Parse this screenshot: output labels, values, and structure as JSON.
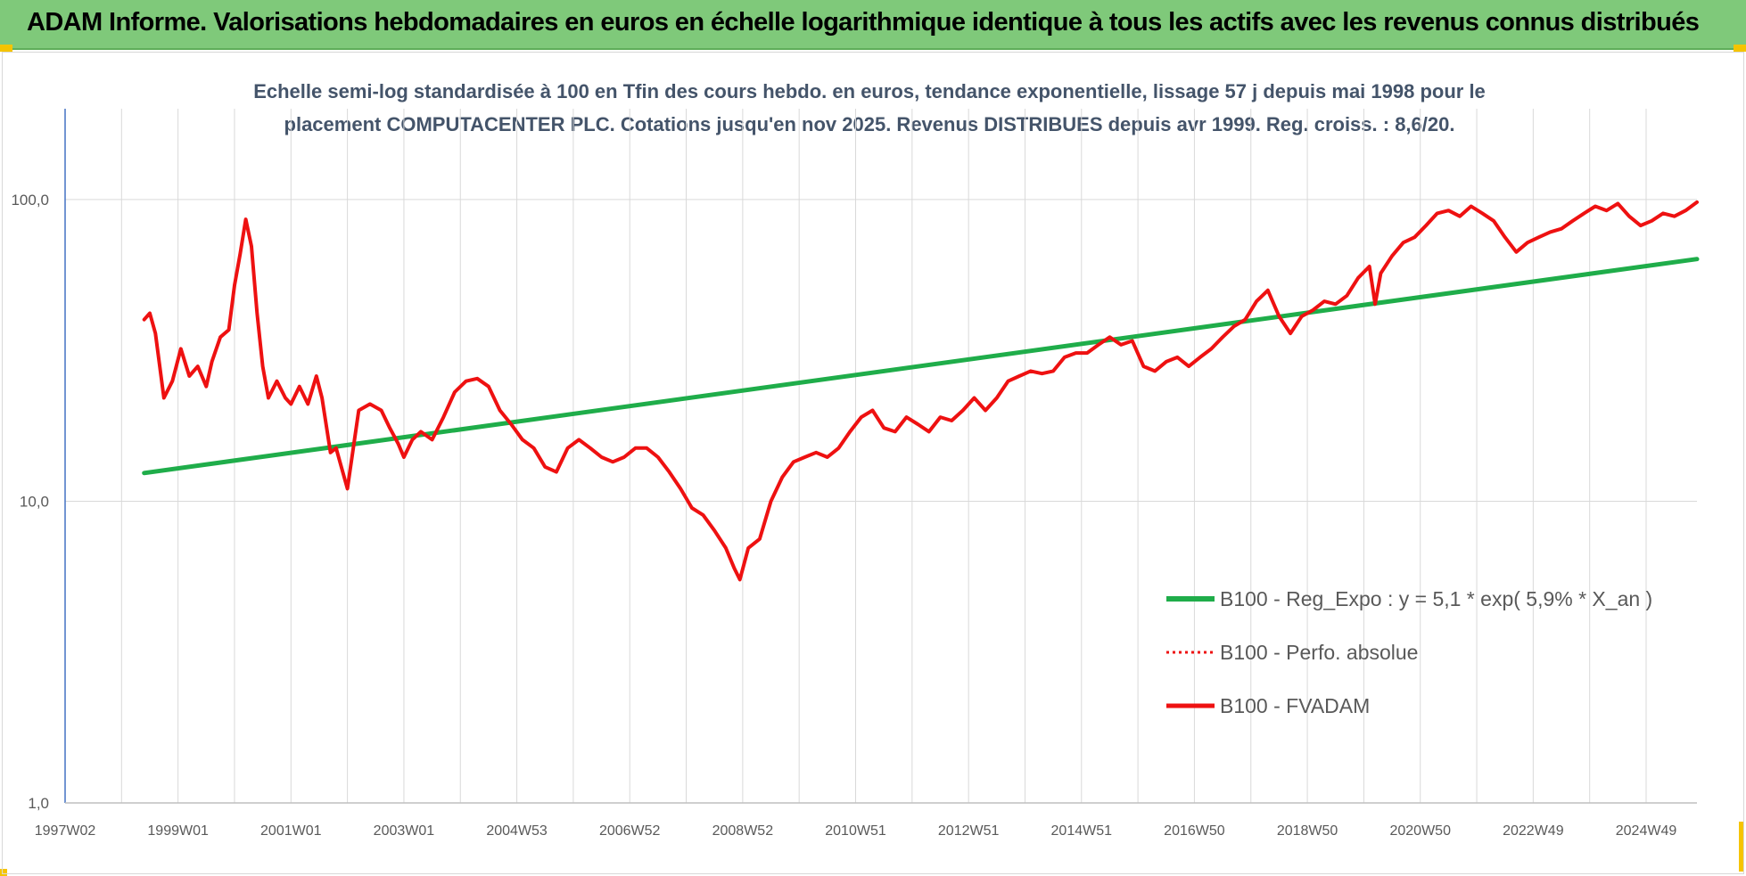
{
  "banner": {
    "title": "ADAM Informe. Valorisations hebdomadaires en euros en échelle logarithmique identique à tous les actifs avec les revenus connus distribués"
  },
  "colors": {
    "banner_bg": "#7fc97a",
    "regression": "#1fad4a",
    "fvadam": "#ee1111",
    "perf": "#ee1111",
    "corner_accent": "#f5c400"
  },
  "chart_data": {
    "type": "line",
    "subtitle_line1": "Echelle semi-log standardisée à 100 en Tfin des cours hebdo. en euros, tendance exponentielle, lissage 57 j depuis mai 1998 pour le",
    "subtitle_line2": "placement COMPUTACENTER PLC. Cotations jusqu'en nov 2025.  Revenus DISTRIBUES depuis avr 1999. Reg. croiss. : 8,6/20.",
    "y_scale": "log",
    "ylim": [
      1,
      200
    ],
    "y_ticks": [
      {
        "value": 1,
        "label": "1,0"
      },
      {
        "value": 10,
        "label": "10,0"
      },
      {
        "value": 100,
        "label": "100,0"
      }
    ],
    "xlim": [
      1997.0,
      2025.9
    ],
    "x_ticks": [
      {
        "value": 1997.0,
        "label": "1997W02"
      },
      {
        "value": 1999.0,
        "label": "1999W01"
      },
      {
        "value": 2001.0,
        "label": "2001W01"
      },
      {
        "value": 2003.0,
        "label": "2003W01"
      },
      {
        "value": 2005.0,
        "label": "2004W53"
      },
      {
        "value": 2007.0,
        "label": "2006W52"
      },
      {
        "value": 2009.0,
        "label": "2008W52"
      },
      {
        "value": 2011.0,
        "label": "2010W51"
      },
      {
        "value": 2013.0,
        "label": "2012W51"
      },
      {
        "value": 2015.0,
        "label": "2014W51"
      },
      {
        "value": 2017.0,
        "label": "2016W50"
      },
      {
        "value": 2019.0,
        "label": "2018W50"
      },
      {
        "value": 2021.0,
        "label": "2020W50"
      },
      {
        "value": 2023.0,
        "label": "2022W49"
      },
      {
        "value": 2025.0,
        "label": "2024W49"
      }
    ],
    "grid": "vertical",
    "legend_position": "bottom-right",
    "series": [
      {
        "name": "B100 - Reg_Expo : y = 5,1 * exp( 5,9% *  X_an )",
        "style": "solid-green",
        "x": [
          1998.4,
          2025.9
        ],
        "y": [
          12.4,
          63.5
        ]
      },
      {
        "name": "B100 - Perfo. absolue",
        "style": "dotted-red",
        "x": [],
        "y": []
      },
      {
        "name": "B100 - FVADAM",
        "style": "solid-red",
        "x": [
          1998.4,
          1998.5,
          1998.6,
          1998.75,
          1998.9,
          1999.05,
          1999.2,
          1999.35,
          1999.5,
          1999.6,
          1999.75,
          1999.9,
          2000.0,
          2000.1,
          2000.2,
          2000.3,
          2000.4,
          2000.5,
          2000.6,
          2000.75,
          2000.9,
          2001.0,
          2001.15,
          2001.3,
          2001.45,
          2001.55,
          2001.7,
          2001.8,
          2002.0,
          2002.2,
          2002.4,
          2002.6,
          2002.75,
          2002.9,
          2003.0,
          2003.15,
          2003.3,
          2003.5,
          2003.7,
          2003.9,
          2004.1,
          2004.3,
          2004.5,
          2004.7,
          2004.9,
          2005.1,
          2005.3,
          2005.5,
          2005.7,
          2005.9,
          2006.1,
          2006.3,
          2006.5,
          2006.7,
          2006.9,
          2007.1,
          2007.3,
          2007.5,
          2007.7,
          2007.9,
          2008.1,
          2008.3,
          2008.5,
          2008.7,
          2008.85,
          2008.95,
          2009.1,
          2009.3,
          2009.5,
          2009.7,
          2009.9,
          2010.1,
          2010.3,
          2010.5,
          2010.7,
          2010.9,
          2011.1,
          2011.3,
          2011.5,
          2011.7,
          2011.9,
          2012.1,
          2012.3,
          2012.5,
          2012.7,
          2012.9,
          2013.1,
          2013.3,
          2013.5,
          2013.7,
          2013.9,
          2014.1,
          2014.3,
          2014.5,
          2014.7,
          2014.9,
          2015.1,
          2015.3,
          2015.5,
          2015.7,
          2015.9,
          2016.1,
          2016.3,
          2016.5,
          2016.7,
          2016.9,
          2017.1,
          2017.3,
          2017.5,
          2017.7,
          2017.9,
          2018.1,
          2018.3,
          2018.5,
          2018.7,
          2018.9,
          2019.1,
          2019.3,
          2019.5,
          2019.7,
          2019.9,
          2020.1,
          2020.2,
          2020.3,
          2020.5,
          2020.7,
          2020.9,
          2021.1,
          2021.3,
          2021.5,
          2021.7,
          2021.9,
          2022.1,
          2022.3,
          2022.5,
          2022.7,
          2022.9,
          2023.1,
          2023.3,
          2023.5,
          2023.7,
          2023.9,
          2024.1,
          2024.3,
          2024.5,
          2024.7,
          2024.9,
          2025.1,
          2025.3,
          2025.5,
          2025.7,
          2025.9
        ],
        "y": [
          40,
          42,
          36,
          22,
          25,
          32,
          26,
          28,
          24,
          29,
          35,
          37,
          52,
          66,
          86,
          70,
          42,
          28,
          22,
          25,
          22,
          21,
          24,
          21,
          26,
          22,
          14.5,
          15,
          11,
          20,
          21,
          20,
          17.5,
          15.5,
          14,
          16,
          17,
          16,
          19,
          23,
          25,
          25.5,
          24,
          20,
          18,
          16,
          15,
          13,
          12.5,
          15,
          16,
          15,
          14,
          13.5,
          14,
          15,
          15,
          14,
          12.5,
          11,
          9.5,
          9,
          8,
          7,
          6,
          5.5,
          7,
          7.5,
          10,
          12,
          13.5,
          14,
          14.5,
          14,
          15,
          17,
          19,
          20,
          17.5,
          17,
          19,
          18,
          17,
          19,
          18.5,
          20,
          22,
          20,
          22,
          25,
          26,
          27,
          26.5,
          27,
          30,
          31,
          31,
          33,
          35,
          33,
          34,
          28,
          27,
          29,
          30,
          28,
          30,
          32,
          35,
          38,
          40,
          46,
          50,
          41,
          36,
          41,
          43,
          46,
          45,
          48,
          55,
          60,
          45,
          57,
          65,
          72,
          75,
          82,
          90,
          92,
          88,
          95,
          90,
          85,
          75,
          67,
          72,
          75,
          78,
          80,
          85,
          90,
          95,
          92,
          97,
          88,
          82,
          85,
          90,
          88,
          92,
          98
        ]
      }
    ]
  }
}
